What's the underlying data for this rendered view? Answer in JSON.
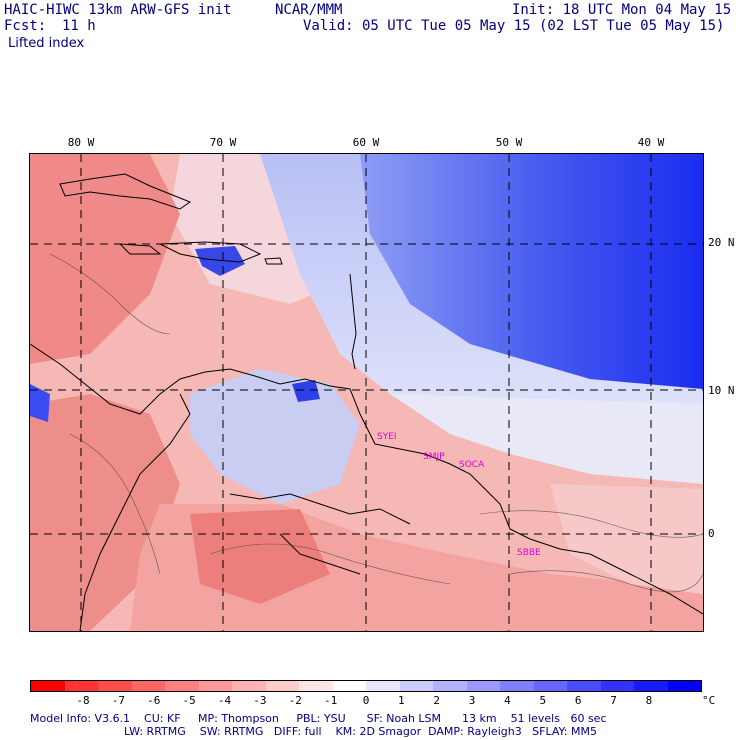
{
  "header": {
    "model": "HAIC-HIWC 13km ARW-GFS init",
    "org": "NCAR/MMM",
    "init": "Init: 18 UTC Mon 04 May 15",
    "fcst_label": "Fcst:",
    "fcst_value": "11 h",
    "valid": "Valid: 05 UTC Tue 05 May 15 (02 LST Tue 05 May 15)",
    "field": "Lifted index"
  },
  "map": {
    "lon_labels": [
      "80 W",
      "70 W",
      "60 W",
      "50 W",
      "40 W"
    ],
    "lat_labels": [
      "20 N",
      "10 N",
      "0"
    ],
    "stations": [
      "SYEI",
      "SMJP",
      "SOCA",
      "SBBE"
    ]
  },
  "colorbar": {
    "colors": [
      "#ff0000",
      "#ff3333",
      "#ff4c4c",
      "#ff6666",
      "#ff8080",
      "#ff9999",
      "#ffb2b2",
      "#ffcccc",
      "#ffe6e6",
      "#ffffff",
      "#e6e6ff",
      "#ccccff",
      "#b2b2ff",
      "#9999ff",
      "#8080ff",
      "#6666ff",
      "#4c4cff",
      "#3333ff",
      "#1a1aff",
      "#0000ff"
    ],
    "ticks": [
      "-8",
      "-7",
      "-6",
      "-5",
      "-4",
      "-3",
      "-2",
      "-1",
      "0",
      "1",
      "2",
      "3",
      "4",
      "5",
      "6",
      "7",
      "8"
    ],
    "unit": "°C"
  },
  "footer": {
    "line1": "Model Info: V3.6.1    CU: KF     MP: Thompson     PBL: YSU      SF: Noah LSM      13 km    51 levels   60 sec",
    "line2": "LW: RRTMG    SW: RRTMG   DIFF: full    KM: 2D Smagor  DAMP: Rayleigh3   SFLAY: MM5"
  }
}
